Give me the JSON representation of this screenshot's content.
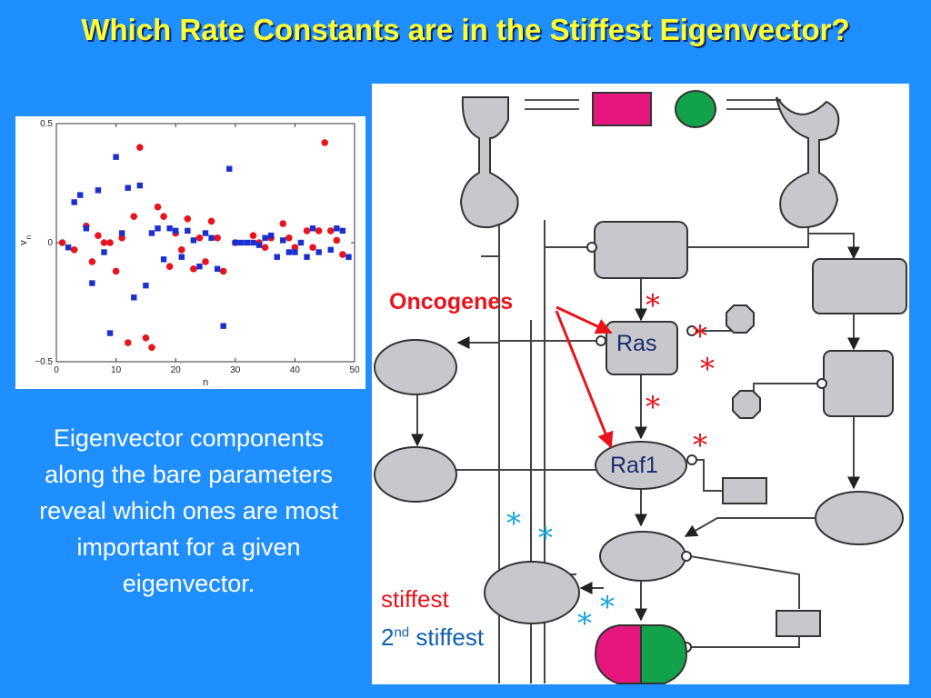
{
  "title": "Which Rate Constants are in the Stiffest Eigenvector?",
  "caption": "Eigenvector components along the bare parameters reveal which ones are most important for a given eigenvector.",
  "diagram": {
    "oncogenes_label": "Oncogenes",
    "ras_label": "Ras",
    "raf1_label": "Raf1",
    "legend_stiffest": "stiffest",
    "legend_second_prefix": "2",
    "legend_second_sup": "nd",
    "legend_second_suffix": " stiffest",
    "asterisk": "*",
    "colors": {
      "red": "#e8141c",
      "blue": "#18a4e0",
      "magenta": "#e6167f",
      "green": "#12a34a",
      "node_gray": "#c8c8cc"
    }
  },
  "chart_data": {
    "type": "scatter",
    "xlabel": "n",
    "ylabel": "v",
    "ylabel_subscript": "n",
    "xlim": [
      0,
      50
    ],
    "ylim": [
      -0.5,
      0.5
    ],
    "x_ticks": [
      "0",
      "10",
      "20",
      "30",
      "40",
      "50"
    ],
    "y_ticks": [
      "0.5",
      "0",
      "−0.5"
    ],
    "series": [
      {
        "color": "#e8141c",
        "marker": "circle",
        "points": [
          [
            1,
            0
          ],
          [
            3,
            -0.03
          ],
          [
            5,
            0.07
          ],
          [
            6,
            -0.08
          ],
          [
            7,
            0.03
          ],
          [
            8,
            0
          ],
          [
            9,
            0
          ],
          [
            10,
            -0.12
          ],
          [
            11,
            0.02
          ],
          [
            12,
            -0.42
          ],
          [
            13,
            0.11
          ],
          [
            14,
            0.4
          ],
          [
            15,
            -0.4
          ],
          [
            16,
            -0.44
          ],
          [
            17,
            0.15
          ],
          [
            18,
            0.11
          ],
          [
            19,
            -0.1
          ],
          [
            20,
            0.04
          ],
          [
            21,
            -0.03
          ],
          [
            22,
            0.1
          ],
          [
            23,
            -0.11
          ],
          [
            24,
            0.02
          ],
          [
            25,
            -0.08
          ],
          [
            26,
            0.09
          ],
          [
            27,
            0.02
          ],
          [
            28,
            -0.12
          ],
          [
            30,
            0
          ],
          [
            33,
            0.03
          ],
          [
            34,
            0
          ],
          [
            35,
            -0.02
          ],
          [
            36,
            0.02
          ],
          [
            38,
            0.08
          ],
          [
            39,
            0.02
          ],
          [
            40,
            -0.02
          ],
          [
            42,
            0.05
          ],
          [
            43,
            -0.02
          ],
          [
            44,
            0.05
          ],
          [
            45,
            0.42
          ],
          [
            46,
            0.05
          ],
          [
            47,
            0.01
          ],
          [
            48,
            -0.05
          ]
        ]
      },
      {
        "color": "#1a2fd0",
        "marker": "square",
        "points": [
          [
            2,
            -0.02
          ],
          [
            3,
            0.17
          ],
          [
            4,
            0.2
          ],
          [
            5,
            0.06
          ],
          [
            6,
            -0.17
          ],
          [
            7,
            0.22
          ],
          [
            8,
            -0.04
          ],
          [
            9,
            -0.38
          ],
          [
            10,
            0.36
          ],
          [
            11,
            0.04
          ],
          [
            12,
            0.23
          ],
          [
            13,
            -0.23
          ],
          [
            14,
            0.24
          ],
          [
            15,
            -0.18
          ],
          [
            16,
            0.04
          ],
          [
            17,
            0.06
          ],
          [
            18,
            -0.07
          ],
          [
            19,
            0.06
          ],
          [
            20,
            0.05
          ],
          [
            21,
            -0.06
          ],
          [
            22,
            0.05
          ],
          [
            23,
            0.01
          ],
          [
            24,
            -0.1
          ],
          [
            25,
            0.04
          ],
          [
            26,
            0.02
          ],
          [
            27,
            -0.11
          ],
          [
            28,
            -0.35
          ],
          [
            29,
            0.31
          ],
          [
            30,
            0
          ],
          [
            31,
            0
          ],
          [
            32,
            0
          ],
          [
            33,
            0
          ],
          [
            34,
            -0.01
          ],
          [
            35,
            0.02
          ],
          [
            36,
            0.03
          ],
          [
            37,
            -0.06
          ],
          [
            38,
            0.01
          ],
          [
            39,
            -0.04
          ],
          [
            40,
            -0.04
          ],
          [
            41,
            0
          ],
          [
            42,
            -0.06
          ],
          [
            43,
            0.06
          ],
          [
            44,
            -0.04
          ],
          [
            46,
            -0.03
          ],
          [
            47,
            0.06
          ],
          [
            48,
            0.05
          ],
          [
            49,
            -0.06
          ]
        ]
      }
    ]
  }
}
